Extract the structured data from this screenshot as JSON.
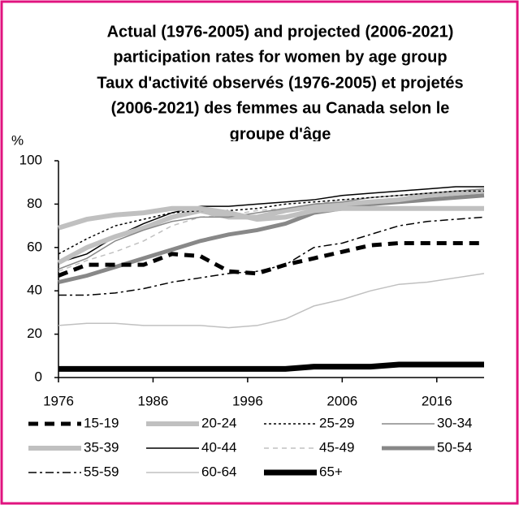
{
  "chart_data": {
    "type": "line",
    "title": [
      "Actual (1976-2005) and projected (2006-2021)",
      "participation rates for women by age group",
      "Taux d'activité observés (1976-2005) et projetés",
      "(2006-2021) des femmes au Canada selon le",
      "groupe d'âge"
    ],
    "ylabel": "%",
    "x": [
      1976,
      1979,
      1982,
      1985,
      1988,
      1991,
      1994,
      1997,
      2000,
      2003,
      2006,
      2009,
      2012,
      2015,
      2018,
      2021
    ],
    "xlim": [
      1976,
      2021
    ],
    "xticks": [
      1976,
      1986,
      1996,
      2006,
      2016
    ],
    "ylim": [
      0,
      100
    ],
    "yticks": [
      0,
      20,
      40,
      60,
      80,
      100
    ],
    "series": [
      {
        "name": "15-19",
        "color": "#000000",
        "values": [
          47,
          52,
          52,
          52,
          57,
          56,
          49,
          48,
          52,
          55,
          58,
          61,
          62,
          62,
          62,
          62
        ]
      },
      {
        "name": "20-24",
        "color": "#c0c0c0",
        "values": [
          69,
          73,
          75,
          76,
          78,
          78,
          76,
          73,
          74,
          77,
          78,
          78,
          78,
          78,
          78,
          78
        ]
      },
      {
        "name": "25-29",
        "color": "#000000",
        "values": [
          57,
          64,
          70,
          73,
          76,
          77,
          77,
          78,
          80,
          81,
          82,
          83,
          84,
          85,
          86,
          86
        ]
      },
      {
        "name": "30-34",
        "color": "#888888",
        "values": [
          50,
          55,
          63,
          68,
          72,
          74,
          74,
          76,
          78,
          80,
          81,
          83,
          84,
          85,
          86,
          87
        ]
      },
      {
        "name": "35-39",
        "color": "#c0c0c0",
        "values": [
          53,
          60,
          65,
          69,
          74,
          77,
          74,
          74,
          77,
          79,
          80,
          81,
          82,
          84,
          85,
          86
        ]
      },
      {
        "name": "40-44",
        "color": "#000000",
        "values": [
          53,
          57,
          65,
          71,
          76,
          79,
          79,
          80,
          81,
          82,
          84,
          85,
          86,
          87,
          88,
          88
        ]
      },
      {
        "name": "45-49",
        "color": "#c0c0c0",
        "values": [
          49,
          54,
          58,
          63,
          70,
          74,
          75,
          77,
          78,
          80,
          82,
          83,
          84,
          85,
          86,
          87
        ]
      },
      {
        "name": "50-54",
        "color": "#888888",
        "values": [
          44,
          47,
          51,
          55,
          59,
          63,
          66,
          68,
          71,
          76,
          78,
          80,
          81,
          82,
          83,
          84
        ]
      },
      {
        "name": "55-59",
        "color": "#000000",
        "values": [
          38,
          38,
          39,
          41,
          44,
          46,
          48,
          49,
          52,
          60,
          62,
          66,
          70,
          72,
          73,
          74
        ]
      },
      {
        "name": "60-64",
        "color": "#c0c0c0",
        "values": [
          24,
          25,
          25,
          24,
          24,
          24,
          23,
          24,
          27,
          33,
          36,
          40,
          43,
          44,
          46,
          48
        ]
      },
      {
        "name": "65+",
        "color": "#000000",
        "values": [
          4,
          4,
          4,
          4,
          4,
          4,
          4,
          4,
          4,
          5,
          5,
          5,
          6,
          6,
          6,
          6
        ]
      }
    ]
  }
}
